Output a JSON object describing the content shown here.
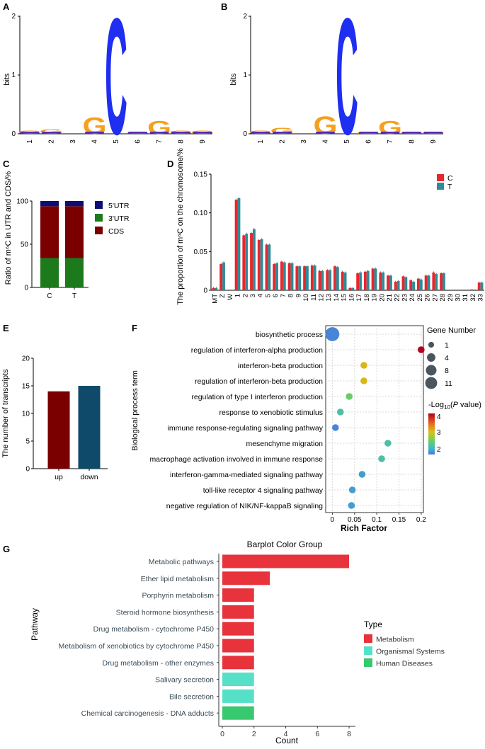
{
  "panel_labels": {
    "a": "A",
    "b": "B",
    "c": "C",
    "d": "D",
    "e": "E",
    "f": "F",
    "g": "G"
  },
  "colors": {
    "logo_C": "#1f2ef0",
    "logo_G": "#f5a01e",
    "logo_A": "#2ca02c",
    "logo_T": "#e31a1c",
    "utr5": "#0d0d73",
    "utr3": "#1c7a1c",
    "cds": "#7a0000",
    "series_C": "#e8262b",
    "series_T": "#2e8b9a",
    "up": "#7a0000",
    "down": "#104a6a",
    "metabolism": "#e8323c",
    "organismal": "#56e0c8",
    "human": "#38c870"
  },
  "chart_data": [
    {
      "id": "A",
      "type": "sequence_logo",
      "ylabel": "bits",
      "yticks": [
        "0",
        "1",
        "2"
      ],
      "ylim": [
        0,
        2
      ],
      "positions": [
        "1",
        "2",
        "3",
        "4",
        "5",
        "6",
        "7",
        "8",
        "9"
      ],
      "dominant": [
        {
          "pos": "1",
          "letter": "G",
          "bits": 0.05
        },
        {
          "pos": "2",
          "letter": "G",
          "bits": 0.08
        },
        {
          "pos": "3",
          "letter": "",
          "bits": 0
        },
        {
          "pos": "4",
          "letter": "G",
          "bits": 0.28
        },
        {
          "pos": "5",
          "letter": "C",
          "bits": 1.98
        },
        {
          "pos": "6",
          "letter": "G",
          "bits": 0.03
        },
        {
          "pos": "7",
          "letter": "G",
          "bits": 0.22
        },
        {
          "pos": "8",
          "letter": "G",
          "bits": 0.05
        },
        {
          "pos": "9",
          "letter": "G",
          "bits": 0.05
        }
      ]
    },
    {
      "id": "B",
      "type": "sequence_logo",
      "ylabel": "bits",
      "yticks": [
        "0",
        "1",
        "2"
      ],
      "ylim": [
        0,
        2
      ],
      "positions": [
        "1",
        "2",
        "3",
        "4",
        "5",
        "6",
        "7",
        "8",
        "9"
      ],
      "dominant": [
        {
          "pos": "1",
          "letter": "G",
          "bits": 0.05
        },
        {
          "pos": "2",
          "letter": "G",
          "bits": 0.1
        },
        {
          "pos": "3",
          "letter": "",
          "bits": 0
        },
        {
          "pos": "4",
          "letter": "G",
          "bits": 0.3
        },
        {
          "pos": "5",
          "letter": "C",
          "bits": 1.98
        },
        {
          "pos": "6",
          "letter": "G",
          "bits": 0.04
        },
        {
          "pos": "7",
          "letter": "G",
          "bits": 0.22
        },
        {
          "pos": "8",
          "letter": "G",
          "bits": 0.04
        },
        {
          "pos": "9",
          "letter": "G",
          "bits": 0.04
        }
      ]
    },
    {
      "id": "C",
      "type": "stacked_bar",
      "ylabel": "Ratio of m⁶C in UTR and CDS/%",
      "yticks": [
        "0",
        "50",
        "100"
      ],
      "ylim": [
        0,
        100
      ],
      "categories": [
        "C",
        "T"
      ],
      "series": [
        {
          "name": "3'UTR",
          "values": [
            34,
            34
          ]
        },
        {
          "name": "CDS",
          "values": [
            60,
            60
          ]
        },
        {
          "name": "5'UTR",
          "values": [
            6,
            6
          ]
        }
      ],
      "legend": [
        "5'UTR",
        "3'UTR",
        "CDS"
      ]
    },
    {
      "id": "D",
      "type": "bar",
      "ylabel": "The proportion of m⁶C on the chromosome/%",
      "yticks": [
        "0",
        "0.05",
        "0.10",
        "0.15"
      ],
      "ylim": [
        0,
        0.15
      ],
      "categories": [
        "MT",
        "Z",
        "W",
        "1",
        "2",
        "3",
        "4",
        "5",
        "6",
        "7",
        "8",
        "9",
        "10",
        "11",
        "12",
        "13",
        "14",
        "15",
        "16",
        "17",
        "18",
        "19",
        "20",
        "21",
        "22",
        "23",
        "24",
        "25",
        "26",
        "27",
        "28",
        "29",
        "30",
        "31",
        "32",
        "33"
      ],
      "series": [
        {
          "name": "C",
          "values": [
            0.003,
            0.034,
            0,
            0.117,
            0.071,
            0.074,
            0.065,
            0.059,
            0.034,
            0.037,
            0.035,
            0.031,
            0.031,
            0.032,
            0.025,
            0.026,
            0.031,
            0.024,
            0.003,
            0.022,
            0.024,
            0.028,
            0.023,
            0.019,
            0.011,
            0.018,
            0.013,
            0.015,
            0.019,
            0.023,
            0.022,
            0,
            0,
            0,
            0.001,
            0.01
          ]
        },
        {
          "name": "T",
          "values": [
            0.003,
            0.036,
            0,
            0.119,
            0.073,
            0.079,
            0.066,
            0.059,
            0.035,
            0.036,
            0.035,
            0.031,
            0.031,
            0.032,
            0.025,
            0.026,
            0.03,
            0.023,
            0.003,
            0.023,
            0.025,
            0.028,
            0.023,
            0.019,
            0.012,
            0.017,
            0.011,
            0.014,
            0.019,
            0.021,
            0.022,
            0,
            0,
            0,
            0.001,
            0.01
          ]
        }
      ]
    },
    {
      "id": "E",
      "type": "bar",
      "ylabel": "The number of transcripts",
      "yticks": [
        "0",
        "5",
        "10",
        "15",
        "20"
      ],
      "ylim": [
        0,
        20
      ],
      "categories": [
        "up",
        "down"
      ],
      "values": [
        14,
        15
      ]
    },
    {
      "id": "F",
      "type": "scatter",
      "ylabel": "Biological process term",
      "xlabel": "Rich Factor",
      "xticks": [
        "0",
        "0.05",
        "0.1",
        "0.15",
        "0.2"
      ],
      "xlim": [
        -0.015,
        0.205
      ],
      "points": [
        {
          "term": "biosynthetic process",
          "rich": 0.0,
          "genes": 11,
          "logp": 1.6
        },
        {
          "term": "regulation of interferon-alpha production",
          "rich": 0.2,
          "genes": 1,
          "logp": 4.2
        },
        {
          "term": "interferon-beta production",
          "rich": 0.071,
          "genes": 1,
          "logp": 3.2
        },
        {
          "term": "regulation of interferon-beta production",
          "rich": 0.071,
          "genes": 1,
          "logp": 3.2
        },
        {
          "term": "regulation of type I interferon production",
          "rich": 0.038,
          "genes": 1,
          "logp": 2.5
        },
        {
          "term": "response to xenobiotic stimulus",
          "rich": 0.018,
          "genes": 1,
          "logp": 2.2
        },
        {
          "term": "immune response-regulating signaling pathway",
          "rich": 0.007,
          "genes": 1,
          "logp": 1.6
        },
        {
          "term": "mesenchyme migration",
          "rich": 0.125,
          "genes": 1,
          "logp": 2.2
        },
        {
          "term": "macrophage activation involved in immune response",
          "rich": 0.111,
          "genes": 1,
          "logp": 2.2
        },
        {
          "term": "interferon-gamma-mediated signaling pathway",
          "rich": 0.067,
          "genes": 1,
          "logp": 1.8
        },
        {
          "term": "toll-like receptor 4 signaling pathway",
          "rich": 0.045,
          "genes": 1,
          "logp": 1.8
        },
        {
          "term": "negative regulation of NIK/NF-kappaB signaling",
          "rich": 0.043,
          "genes": 1,
          "logp": 1.8
        }
      ],
      "size_legend": {
        "title": "Gene Number",
        "values": [
          "1",
          "4",
          "8",
          "11"
        ]
      },
      "color_legend": {
        "title_prefix": "-Log",
        "title_sub": "10",
        "title_open": "(",
        "title_p": "P",
        "title_suffix": " value)",
        "ticks": [
          "4",
          "3",
          "2"
        ]
      }
    },
    {
      "id": "G",
      "type": "bar_horizontal",
      "title": "Barplot Color Group",
      "xlabel": "Count",
      "ylabel": "Pathway",
      "xticks": [
        "0",
        "2",
        "4",
        "6",
        "8"
      ],
      "xlim": [
        0,
        8.4
      ],
      "categories": [
        "Metabolic pathways",
        "Ether lipid metabolism",
        "Porphyrin metabolism",
        "Steroid hormone biosynthesis",
        "Drug metabolism - cytochrome P450",
        "Metabolism of xenobiotics by cytochrome P450",
        "Drug metabolism - other enzymes",
        "Salivary secretion",
        "Bile secretion",
        "Chemical carcinogenesis - DNA adducts"
      ],
      "values": [
        8,
        3,
        2,
        2,
        2,
        2,
        2,
        2,
        2,
        2
      ],
      "types": [
        "Metabolism",
        "Metabolism",
        "Metabolism",
        "Metabolism",
        "Metabolism",
        "Metabolism",
        "Metabolism",
        "Organismal Systems",
        "Organismal Systems",
        "Human Diseases"
      ],
      "legend_title": "Type",
      "legend": [
        "Metabolism",
        "Organismal Systems",
        "Human Diseases"
      ]
    }
  ]
}
